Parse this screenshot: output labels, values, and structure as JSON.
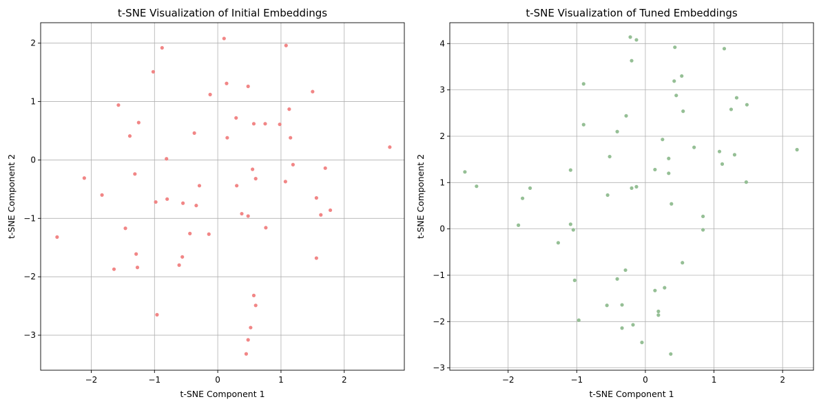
{
  "chart_data": [
    {
      "type": "scatter",
      "title": "t-SNE Visualization of Initial Embeddings",
      "xlabel": "t-SNE Component 1",
      "ylabel": "t-SNE Component 2",
      "xlim": [
        -2.8,
        2.95
      ],
      "ylim": [
        -3.6,
        2.35
      ],
      "xticks": [
        -2,
        -1,
        0,
        1,
        2
      ],
      "yticks": [
        -3,
        -2,
        -1,
        0,
        1,
        2
      ],
      "grid": true,
      "color": "#f08080",
      "points": [
        [
          0.1,
          2.08
        ],
        [
          1.08,
          1.96
        ],
        [
          -0.88,
          1.92
        ],
        [
          -1.02,
          1.51
        ],
        [
          0.14,
          1.31
        ],
        [
          0.48,
          1.26
        ],
        [
          1.5,
          1.17
        ],
        [
          -0.12,
          1.12
        ],
        [
          -1.57,
          0.94
        ],
        [
          1.13,
          0.87
        ],
        [
          0.29,
          0.72
        ],
        [
          -1.25,
          0.64
        ],
        [
          0.57,
          0.62
        ],
        [
          0.75,
          0.62
        ],
        [
          0.98,
          0.61
        ],
        [
          -0.37,
          0.46
        ],
        [
          -1.39,
          0.41
        ],
        [
          0.15,
          0.38
        ],
        [
          1.15,
          0.38
        ],
        [
          2.72,
          0.22
        ],
        [
          -0.81,
          0.02
        ],
        [
          1.19,
          -0.08
        ],
        [
          1.7,
          -0.14
        ],
        [
          0.55,
          -0.16
        ],
        [
          -1.31,
          -0.24
        ],
        [
          -2.11,
          -0.31
        ],
        [
          0.6,
          -0.32
        ],
        [
          1.07,
          -0.37
        ],
        [
          -0.29,
          -0.44
        ],
        [
          0.3,
          -0.44
        ],
        [
          -1.83,
          -0.6
        ],
        [
          1.56,
          -0.65
        ],
        [
          -0.8,
          -0.67
        ],
        [
          -0.98,
          -0.72
        ],
        [
          -0.55,
          -0.74
        ],
        [
          -0.34,
          -0.78
        ],
        [
          1.78,
          -0.86
        ],
        [
          0.38,
          -0.92
        ],
        [
          1.63,
          -0.94
        ],
        [
          0.48,
          -0.96
        ],
        [
          -1.46,
          -1.17
        ],
        [
          0.76,
          -1.16
        ],
        [
          -0.44,
          -1.26
        ],
        [
          -0.14,
          -1.27
        ],
        [
          -2.54,
          -1.32
        ],
        [
          -1.29,
          -1.61
        ],
        [
          -0.56,
          -1.66
        ],
        [
          1.56,
          -1.68
        ],
        [
          -0.61,
          -1.8
        ],
        [
          -1.27,
          -1.84
        ],
        [
          -1.64,
          -1.87
        ],
        [
          0.57,
          -2.32
        ],
        [
          0.6,
          -2.49
        ],
        [
          -0.96,
          -2.65
        ],
        [
          0.52,
          -2.87
        ],
        [
          0.48,
          -3.08
        ],
        [
          0.45,
          -3.32
        ]
      ]
    },
    {
      "type": "scatter",
      "title": "t-SNE Visualization of Tuned Embeddings",
      "xlabel": "t-SNE Component 1",
      "ylabel": "t-SNE Component 2",
      "xlim": [
        -2.85,
        2.45
      ],
      "ylim": [
        -3.05,
        4.45
      ],
      "xticks": [
        -2,
        -1,
        0,
        1,
        2
      ],
      "yticks": [
        -3,
        -2,
        -1,
        0,
        1,
        2,
        3,
        4
      ],
      "grid": true,
      "color": "#8fbc8f",
      "points": [
        [
          -0.22,
          4.14
        ],
        [
          -0.13,
          4.08
        ],
        [
          0.43,
          3.92
        ],
        [
          1.15,
          3.89
        ],
        [
          -0.2,
          3.63
        ],
        [
          0.53,
          3.3
        ],
        [
          0.42,
          3.19
        ],
        [
          -0.9,
          3.13
        ],
        [
          0.45,
          2.88
        ],
        [
          1.33,
          2.83
        ],
        [
          1.48,
          2.68
        ],
        [
          1.25,
          2.58
        ],
        [
          0.55,
          2.54
        ],
        [
          -0.28,
          2.44
        ],
        [
          -0.9,
          2.25
        ],
        [
          -0.41,
          2.1
        ],
        [
          0.25,
          1.93
        ],
        [
          0.71,
          1.76
        ],
        [
          1.08,
          1.67
        ],
        [
          2.21,
          1.71
        ],
        [
          1.3,
          1.6
        ],
        [
          -0.52,
          1.56
        ],
        [
          0.34,
          1.52
        ],
        [
          1.12,
          1.4
        ],
        [
          0.14,
          1.28
        ],
        [
          -1.09,
          1.27
        ],
        [
          0.34,
          1.2
        ],
        [
          -2.63,
          1.23
        ],
        [
          1.47,
          1.01
        ],
        [
          -2.46,
          0.92
        ],
        [
          -0.13,
          0.91
        ],
        [
          -0.2,
          0.88
        ],
        [
          -1.68,
          0.88
        ],
        [
          -0.55,
          0.73
        ],
        [
          -1.79,
          0.66
        ],
        [
          0.38,
          0.54
        ],
        [
          0.84,
          0.27
        ],
        [
          -1.09,
          0.1
        ],
        [
          -1.85,
          0.08
        ],
        [
          -1.05,
          -0.02
        ],
        [
          0.84,
          -0.02
        ],
        [
          -1.27,
          -0.3
        ],
        [
          0.54,
          -0.73
        ],
        [
          -0.29,
          -0.89
        ],
        [
          -0.41,
          -1.08
        ],
        [
          -1.03,
          -1.11
        ],
        [
          0.28,
          -1.27
        ],
        [
          0.14,
          -1.33
        ],
        [
          -0.56,
          -1.65
        ],
        [
          -0.34,
          -1.64
        ],
        [
          0.19,
          -1.78
        ],
        [
          0.19,
          -1.86
        ],
        [
          -0.97,
          -1.97
        ],
        [
          -0.18,
          -2.07
        ],
        [
          -0.34,
          -2.14
        ],
        [
          -0.05,
          -2.45
        ],
        [
          0.37,
          -2.7
        ]
      ]
    }
  ]
}
